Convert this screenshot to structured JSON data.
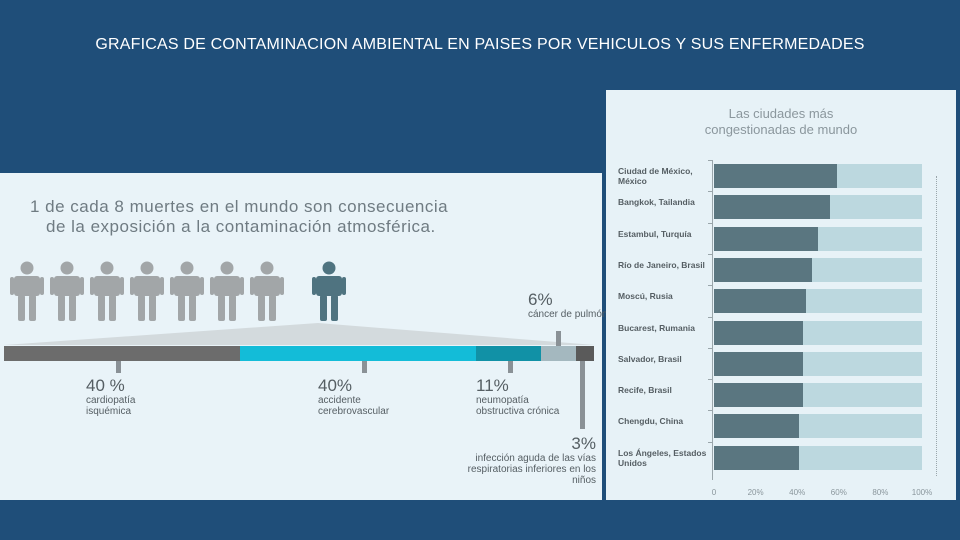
{
  "slide": {
    "title": "GRAFICAS DE CONTAMINACION AMBIENTAL EN PAISES POR VEHICULOS Y SUS ENFERMEDADES"
  },
  "infographic": {
    "headline_line1": "1 de cada 8 muertes en el mundo son consecuencia",
    "headline_line2": "de la exposición a la contaminación atmosférica.",
    "people_icon": "person-icon",
    "causes": [
      {
        "pct": "40 %",
        "label": "cardiopatía isquémica",
        "share": 40,
        "color": "#6c6c6c"
      },
      {
        "pct": "40%",
        "label": "accidente cerebrovascular",
        "share": 40,
        "color": "#13bcd8"
      },
      {
        "pct": "11%",
        "label": "neumopatía obstructiva crónica",
        "share": 11,
        "color": "#1191a6"
      },
      {
        "pct": "6%",
        "label": "cáncer de pulmón",
        "share": 6,
        "color": "#a4b8bf"
      },
      {
        "pct": "3%",
        "label": "infección aguda de las vías respiratorias inferiores en los niños",
        "share": 3,
        "color": "#5a5a5a"
      }
    ]
  },
  "chart_data": {
    "type": "bar",
    "title": "Las ciudades más congestionadas de mundo",
    "categories": [
      "Ciudad de México, México",
      "Bangkok, Tailandia",
      "Estambul, Turquía",
      "Río de Janeiro, Brasil",
      "Moscú, Rusia",
      "Bucarest, Rumania",
      "Salvador, Brasil",
      "Recife, Brasil",
      "Chengdu, China",
      "Los Ángeles, Estados Unidos"
    ],
    "values": [
      59,
      56,
      50,
      47,
      44,
      43,
      43,
      43,
      41,
      41
    ],
    "xlim": [
      0,
      100
    ],
    "xticks": [
      "0",
      "20%",
      "40%",
      "60%",
      "80%",
      "100%"
    ],
    "orientation": "horizontal",
    "colors": {
      "bar": "#5a7680",
      "track": "#bcd8df"
    }
  }
}
